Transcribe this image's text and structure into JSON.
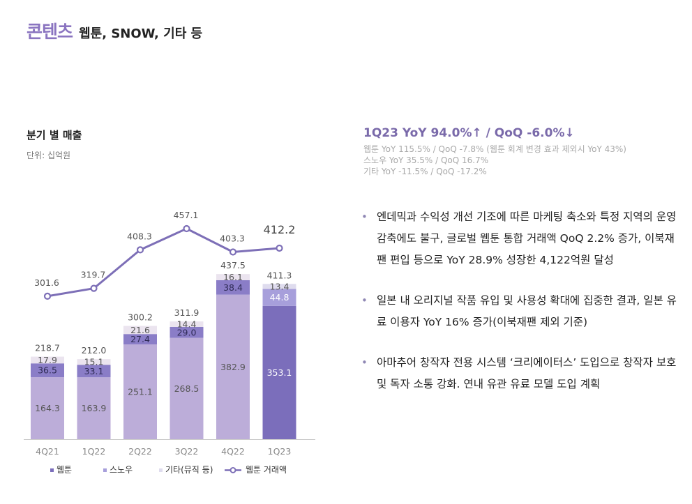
{
  "header": {
    "title": "콘텐츠",
    "subtitle": "웹툰, SNOW, 기타 등"
  },
  "left_panel": {
    "chart_title": "분기 별 매출",
    "unit": "단위: 십억원"
  },
  "right_panel": {
    "headline": "1Q23 YoY 94.0%↑ / QoQ -6.0%↓",
    "sub_lines": [
      "웹툰 YoY 115.5% / QoQ -7.8% (웹툰 회계 변경 효과 제외시 YoY 43%)",
      "스노우 YoY 35.5% / QoQ 16.7%",
      "기타 YoY -11.5% / QoQ -17.2%"
    ],
    "bullets": [
      "엔데믹과 수익성 개선 기조에 따른 마케팅 축소와 특정 지역의 운영 감축에도 불구, 글로벌 웹툰 통합 거래액 QoQ 2.2% 증가, 이북재팬 편입 등으로 YoY 28.9% 성장한 4,122억원 달성",
      "일본 내 오리지널 작품 유입 및 사용성 확대에 집중한 결과, 일본 유료 이용자 YoY 16% 증가(이북재팬 제외 기준)",
      "아마추어 창작자 전용 시스템 ‘크리에이터스’ 도입으로 창작자 보호 및 독자 소통 강화. 연내 유관 유료 모델 도입 계획"
    ]
  },
  "chart_data": {
    "type": "bar",
    "stacked": true,
    "categories": [
      "4Q21",
      "1Q22",
      "2Q22",
      "3Q22",
      "4Q22",
      "1Q23"
    ],
    "series": [
      {
        "name": "웹툰",
        "values": [
          164.3,
          163.9,
          251.1,
          268.5,
          382.9,
          353.1
        ]
      },
      {
        "name": "스노우",
        "values": [
          36.5,
          33.1,
          27.4,
          29.0,
          38.4,
          44.8
        ]
      },
      {
        "name": "기타(뮤직 등)",
        "values": [
          17.9,
          15.1,
          21.6,
          14.4,
          16.1,
          13.4
        ]
      }
    ],
    "bar_series_colors": {
      "1Q23": [
        "#7b6ebb",
        "#a79fdb",
        "#dfdcee"
      ],
      "default": [
        "#bcadd9",
        "#8a7dc7",
        "#ebe4ef"
      ]
    },
    "totals": [
      "218.7",
      "212.0",
      "300.2",
      "311.9",
      "437.5",
      "411.3"
    ],
    "line_series": {
      "name": "웹툰 거래액",
      "values": [
        301.6,
        319.7,
        408.3,
        457.1,
        403.3,
        412.2
      ],
      "labels": [
        "301.6",
        "319.7",
        "408.3",
        "457.1",
        "403.3",
        "412.2"
      ],
      "color": "#7d6fb7"
    },
    "legend": {
      "position": "bottom",
      "items": [
        {
          "name": "웹툰",
          "color": "#7b6ebb"
        },
        {
          "name": "스노우",
          "color": "#a79fdb"
        },
        {
          "name": "기타(뮤직 등)",
          "color": "#dfdcee"
        },
        {
          "name": "웹툰 거래액",
          "color": "#7d6fb7"
        }
      ]
    },
    "colors": {
      "axis": "#cccccc",
      "tick_text": "#888888",
      "value_text": "#555555"
    }
  }
}
